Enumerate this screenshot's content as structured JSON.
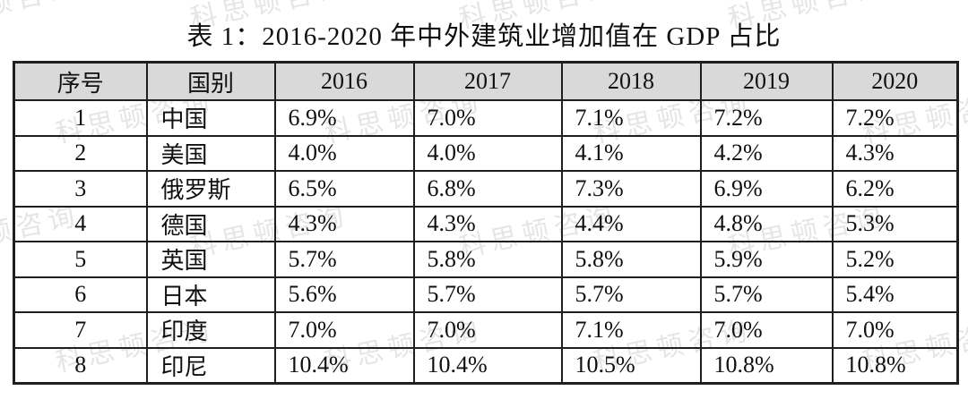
{
  "title": "表 1：2016-2020 年中外建筑业增加值在 GDP 占比",
  "watermark": {
    "text": "科思顿咨询",
    "color": "rgba(70,70,70,0.14)"
  },
  "colors": {
    "header_bg": "#d9d9d9",
    "border": "#1f1f1f",
    "background": "#ffffff",
    "text": "#101010"
  },
  "table": {
    "columns": [
      "序号",
      "国别",
      "2016",
      "2017",
      "2018",
      "2019",
      "2020"
    ],
    "rows": [
      {
        "no": "1",
        "country": "中国",
        "values": [
          "6.9%",
          "7.0%",
          "7.1%",
          "7.2%",
          "7.2%"
        ]
      },
      {
        "no": "2",
        "country": "美国",
        "values": [
          "4.0%",
          "4.0%",
          "4.1%",
          "4.2%",
          "4.3%"
        ]
      },
      {
        "no": "3",
        "country": "俄罗斯",
        "values": [
          "6.5%",
          "6.8%",
          "7.3%",
          "6.9%",
          "6.2%"
        ]
      },
      {
        "no": "4",
        "country": "德国",
        "values": [
          "4.3%",
          "4.3%",
          "4.4%",
          "4.8%",
          "5.3%"
        ]
      },
      {
        "no": "5",
        "country": "英国",
        "values": [
          "5.7%",
          "5.8%",
          "5.8%",
          "5.9%",
          "5.2%"
        ]
      },
      {
        "no": "6",
        "country": "日本",
        "values": [
          "5.6%",
          "5.7%",
          "5.7%",
          "5.7%",
          "5.4%"
        ]
      },
      {
        "no": "7",
        "country": "印度",
        "values": [
          "7.0%",
          "7.0%",
          "7.1%",
          "7.0%",
          "7.0%"
        ]
      },
      {
        "no": "8",
        "country": "印尼",
        "values": [
          "10.4%",
          "10.4%",
          "10.5%",
          "10.8%",
          "10.8%"
        ]
      }
    ]
  },
  "chart_data": {
    "type": "table",
    "title": "表 1：2016-2020 年中外建筑业增加值在 GDP 占比",
    "columns": [
      "序号",
      "国别",
      "2016",
      "2017",
      "2018",
      "2019",
      "2020"
    ],
    "categories": [
      "2016",
      "2017",
      "2018",
      "2019",
      "2020"
    ],
    "unit": "%",
    "series": [
      {
        "name": "中国",
        "values": [
          6.9,
          7.0,
          7.1,
          7.2,
          7.2
        ]
      },
      {
        "name": "美国",
        "values": [
          4.0,
          4.0,
          4.1,
          4.2,
          4.3
        ]
      },
      {
        "name": "俄罗斯",
        "values": [
          6.5,
          6.8,
          7.3,
          6.9,
          6.2
        ]
      },
      {
        "name": "德国",
        "values": [
          4.3,
          4.3,
          4.4,
          4.8,
          5.3
        ]
      },
      {
        "name": "英国",
        "values": [
          5.7,
          5.8,
          5.8,
          5.9,
          5.2
        ]
      },
      {
        "name": "日本",
        "values": [
          5.6,
          5.7,
          5.7,
          5.7,
          5.4
        ]
      },
      {
        "name": "印度",
        "values": [
          7.0,
          7.0,
          7.1,
          7.0,
          7.0
        ]
      },
      {
        "name": "印尼",
        "values": [
          10.4,
          10.4,
          10.5,
          10.8,
          10.8
        ]
      }
    ]
  }
}
